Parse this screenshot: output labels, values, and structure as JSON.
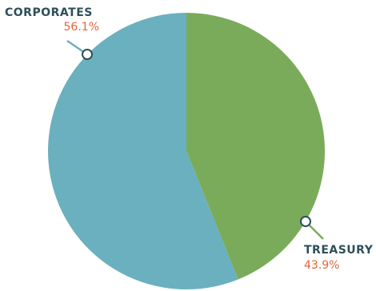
{
  "chart_data": {
    "type": "pie",
    "title": "",
    "legend": "none",
    "slices": [
      {
        "label": "CORPORATES",
        "value": 56.1,
        "value_label": "56.1%",
        "color": "#6BB0BE"
      },
      {
        "label": "TREASURY",
        "value": 43.9,
        "value_label": "43.9%",
        "color": "#7AAB5A"
      }
    ],
    "label_colors": {
      "CORPORATES": "#2E4E5A",
      "TREASURY": "#2E4E5A",
      "percent": "#E8623A"
    }
  }
}
